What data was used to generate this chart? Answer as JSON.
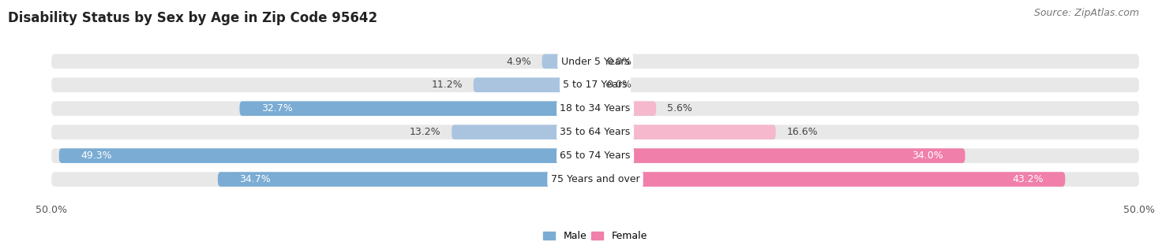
{
  "title": "Disability Status by Sex by Age in Zip Code 95642",
  "source": "Source: ZipAtlas.com",
  "categories": [
    "Under 5 Years",
    "5 to 17 Years",
    "18 to 34 Years",
    "35 to 64 Years",
    "65 to 74 Years",
    "75 Years and over"
  ],
  "male_values": [
    4.9,
    11.2,
    32.7,
    13.2,
    49.3,
    34.7
  ],
  "female_values": [
    0.0,
    0.0,
    5.6,
    16.6,
    34.0,
    43.2
  ],
  "male_color_small": "#aac4e0",
  "male_color_large": "#7aacd4",
  "female_color_small": "#f5b8cc",
  "female_color_large": "#f07faa",
  "bar_bg_color": "#e8e8e8",
  "fig_bg_color": "#ffffff",
  "axis_limit": 50.0,
  "bar_height": 0.62,
  "title_fontsize": 12,
  "source_fontsize": 9,
  "tick_fontsize": 9,
  "bar_label_fontsize": 9,
  "category_fontsize": 9,
  "legend_fontsize": 9,
  "male_threshold": 20,
  "female_threshold": 20
}
